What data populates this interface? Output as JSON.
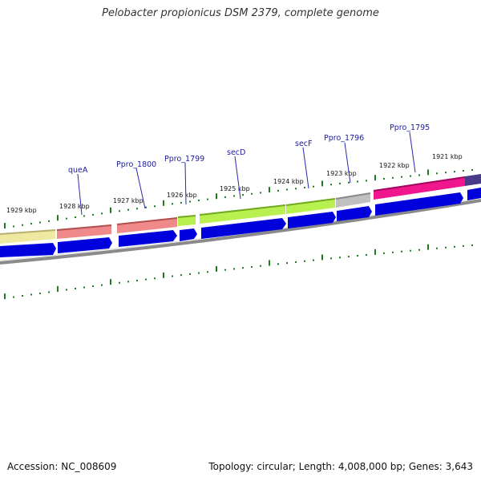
{
  "title": "Pelobacter propionicus DSM 2379, complete genome",
  "accession_text": "Accession: NC_008609",
  "summary_text": "Topology: circular; Length: 4,008,000 bp; Genes: 3,643",
  "colors": {
    "backbone": "#8a8a8a",
    "cds_arrow": "#0000dd",
    "tick": "#1e7a1e",
    "label_line": "#2a2ab0"
  },
  "kbp_labels": [
    "1929 kbp",
    "1928 kbp",
    "1927 kbp",
    "1926 kbp",
    "1925 kbp",
    "1924 kbp",
    "1923 kbp",
    "1922 kbp",
    "1921 kbp"
  ],
  "gene_labels": [
    "queA",
    "Ppro_1800",
    "Ppro_1799",
    "secD",
    "secF",
    "Ppro_1796",
    "Ppro_1795"
  ],
  "feature_blocks": [
    {
      "name": "unnamed-left",
      "color": "#eee8a0"
    },
    {
      "name": "queA",
      "color": "#f08a8a"
    },
    {
      "name": "Ppro_1800",
      "color": "#f08a8a"
    },
    {
      "name": "Ppro_1799",
      "color": "#b8f050"
    },
    {
      "name": "secD",
      "color": "#b8f050"
    },
    {
      "name": "secF",
      "color": "#b8f050"
    },
    {
      "name": "Ppro_1796",
      "color": "#c0c0c0"
    },
    {
      "name": "Ppro_1795",
      "color": "#f0168c"
    },
    {
      "name": "unnamed-right",
      "color": "#4a3a8a"
    }
  ]
}
